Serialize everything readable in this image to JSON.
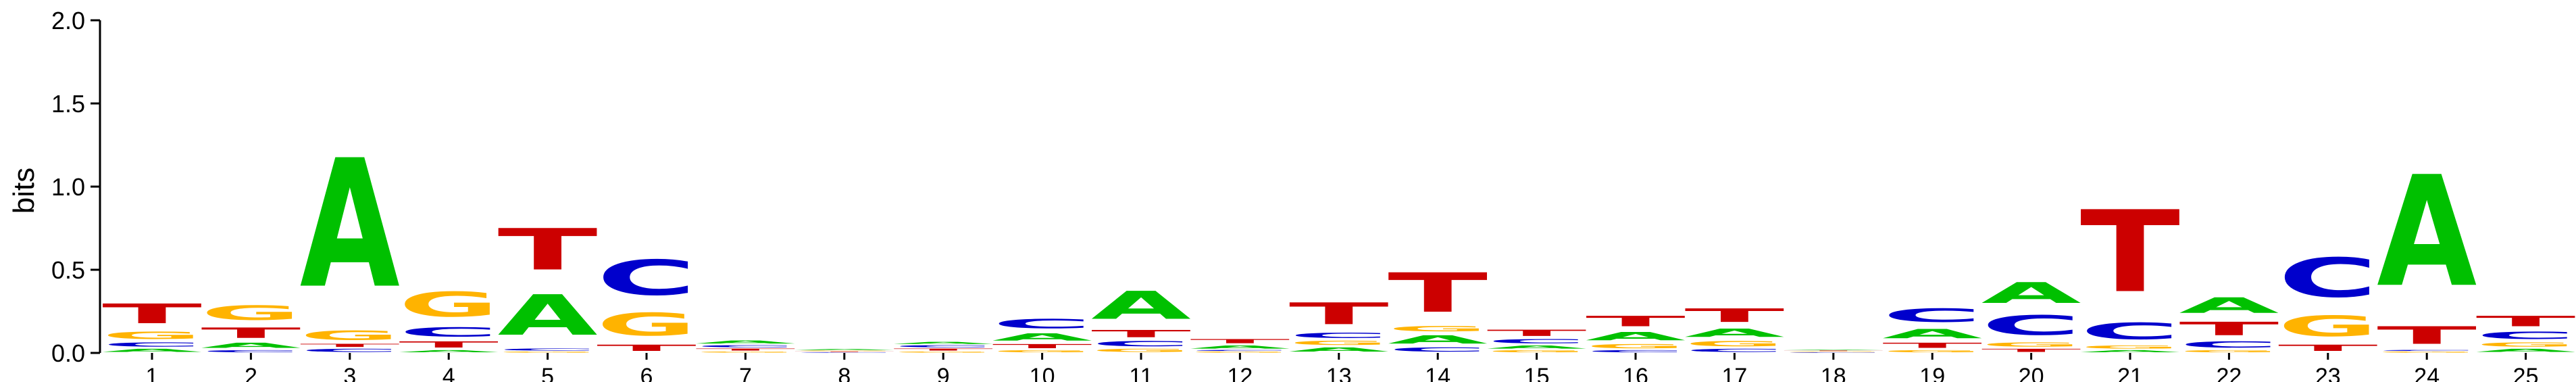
{
  "chart_data": {
    "type": "sequence-logo",
    "ylabel": "bits",
    "ylim": [
      0,
      2.0
    ],
    "yticks": [
      "0.0",
      "0.5",
      "1.0",
      "1.5",
      "2.0"
    ],
    "colors": {
      "A": "#00C000",
      "C": "#0000CC",
      "G": "#FFB300",
      "T": "#CC0000"
    },
    "positions": [
      {
        "label": "1",
        "stack": [
          [
            "A",
            0.03
          ],
          [
            "C",
            0.04
          ],
          [
            "G",
            0.07
          ],
          [
            "T",
            0.19
          ]
        ]
      },
      {
        "label": "2",
        "stack": [
          [
            "C",
            0.02
          ],
          [
            "A",
            0.05
          ],
          [
            "T",
            0.1
          ],
          [
            "G",
            0.14
          ]
        ]
      },
      {
        "label": "3",
        "stack": [
          [
            "C",
            0.03
          ],
          [
            "T",
            0.03
          ],
          [
            "G",
            0.09
          ],
          [
            "A",
            1.24
          ]
        ]
      },
      {
        "label": "4",
        "stack": [
          [
            "A",
            0.02
          ],
          [
            "T",
            0.06
          ],
          [
            "C",
            0.09
          ],
          [
            "G",
            0.24
          ]
        ]
      },
      {
        "label": "5",
        "stack": [
          [
            "G",
            0.01
          ],
          [
            "C",
            0.02
          ],
          [
            "A",
            0.39
          ],
          [
            "T",
            0.4
          ]
        ]
      },
      {
        "label": "6",
        "stack": [
          [
            "T",
            0.06
          ],
          [
            "G",
            0.22
          ],
          [
            "C",
            0.34
          ]
        ]
      },
      {
        "label": "7",
        "stack": [
          [
            "G",
            0.01
          ],
          [
            "T",
            0.02
          ],
          [
            "C",
            0.02
          ],
          [
            "A",
            0.03
          ]
        ]
      },
      {
        "label": "8",
        "stack": [
          [
            "C",
            0.005
          ],
          [
            "T",
            0.005
          ],
          [
            "G",
            0.005
          ],
          [
            "A",
            0.01
          ]
        ]
      },
      {
        "label": "9",
        "stack": [
          [
            "G",
            0.01
          ],
          [
            "T",
            0.02
          ],
          [
            "C",
            0.02
          ],
          [
            "A",
            0.02
          ]
        ]
      },
      {
        "label": "10",
        "stack": [
          [
            "G",
            0.02
          ],
          [
            "T",
            0.04
          ],
          [
            "A",
            0.07
          ],
          [
            "C",
            0.09
          ]
        ]
      },
      {
        "label": "11",
        "stack": [
          [
            "G",
            0.03
          ],
          [
            "C",
            0.05
          ],
          [
            "T",
            0.07
          ],
          [
            "A",
            0.27
          ]
        ]
      },
      {
        "label": "12",
        "stack": [
          [
            "G",
            0.01
          ],
          [
            "C",
            0.01
          ],
          [
            "A",
            0.03
          ],
          [
            "T",
            0.04
          ]
        ]
      },
      {
        "label": "13",
        "stack": [
          [
            "A",
            0.04
          ],
          [
            "G",
            0.04
          ],
          [
            "C",
            0.05
          ],
          [
            "T",
            0.21
          ]
        ]
      },
      {
        "label": "14",
        "stack": [
          [
            "C",
            0.04
          ],
          [
            "A",
            0.08
          ],
          [
            "G",
            0.05
          ],
          [
            "T",
            0.38
          ]
        ]
      },
      {
        "label": "15",
        "stack": [
          [
            "G",
            0.02
          ],
          [
            "A",
            0.03
          ],
          [
            "C",
            0.04
          ],
          [
            "T",
            0.06
          ]
        ]
      },
      {
        "label": "16",
        "stack": [
          [
            "C",
            0.02
          ],
          [
            "G",
            0.04
          ],
          [
            "A",
            0.08
          ],
          [
            "T",
            0.1
          ]
        ]
      },
      {
        "label": "17",
        "stack": [
          [
            "C",
            0.03
          ],
          [
            "G",
            0.05
          ],
          [
            "A",
            0.08
          ],
          [
            "T",
            0.13
          ]
        ]
      },
      {
        "label": "18",
        "stack": [
          [
            "C",
            0.005
          ],
          [
            "G",
            0.005
          ],
          [
            "T",
            0.005
          ],
          [
            "A",
            0.005
          ]
        ]
      },
      {
        "label": "19",
        "stack": [
          [
            "G",
            0.02
          ],
          [
            "T",
            0.05
          ],
          [
            "A",
            0.09
          ],
          [
            "C",
            0.13
          ]
        ]
      },
      {
        "label": "20",
        "stack": [
          [
            "T",
            0.03
          ],
          [
            "G",
            0.04
          ],
          [
            "C",
            0.19
          ],
          [
            "A",
            0.2
          ]
        ]
      },
      {
        "label": "21",
        "stack": [
          [
            "A",
            0.02
          ],
          [
            "G",
            0.03
          ],
          [
            "C",
            0.16
          ],
          [
            "T",
            0.79
          ]
        ]
      },
      {
        "label": "22",
        "stack": [
          [
            "G",
            0.02
          ],
          [
            "C",
            0.06
          ],
          [
            "T",
            0.13
          ],
          [
            "A",
            0.15
          ]
        ]
      },
      {
        "label": "23",
        "stack": [
          [
            "T",
            0.06
          ],
          [
            "G",
            0.2
          ],
          [
            "C",
            0.38
          ]
        ]
      },
      {
        "label": "24",
        "stack": [
          [
            "G",
            0.01
          ],
          [
            "C",
            0.01
          ],
          [
            "T",
            0.17
          ],
          [
            "A",
            1.07
          ]
        ]
      },
      {
        "label": "25",
        "stack": [
          [
            "A",
            0.03
          ],
          [
            "G",
            0.04
          ],
          [
            "C",
            0.07
          ],
          [
            "T",
            0.1
          ]
        ]
      }
    ]
  }
}
